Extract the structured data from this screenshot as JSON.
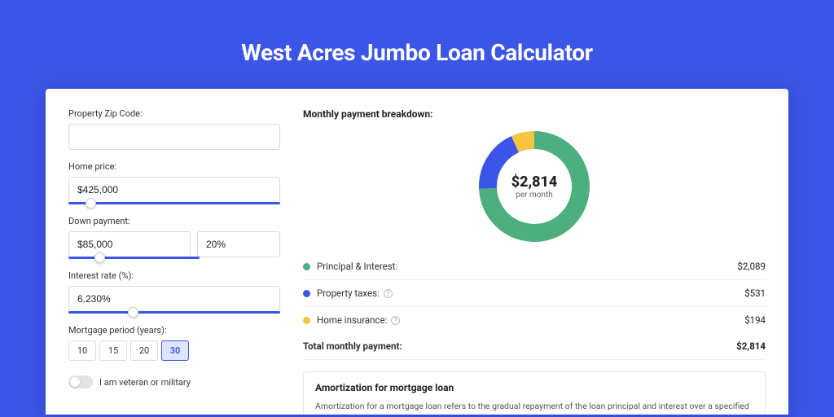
{
  "page": {
    "title": "West Acres Jumbo Loan Calculator",
    "background_color": "#3b55e6",
    "card_background": "#ffffff"
  },
  "form": {
    "zip": {
      "label": "Property Zip Code:",
      "value": ""
    },
    "home_price": {
      "label": "Home price:",
      "value": "$425,000",
      "slider_pos_pct": 8
    },
    "down_payment": {
      "label": "Down payment:",
      "amount": "$85,000",
      "percent": "20%",
      "slider_pos_pct": 20
    },
    "interest_rate": {
      "label": "Interest rate (%):",
      "value": "6.230%",
      "slider_pos_pct": 28
    },
    "mortgage_period": {
      "label": "Mortgage period (years):",
      "options": [
        "10",
        "15",
        "20",
        "30"
      ],
      "selected": "30"
    },
    "veteran_toggle": {
      "label": "I am veteran or military",
      "checked": false
    }
  },
  "breakdown": {
    "title": "Monthly payment breakdown:",
    "donut": {
      "center_amount": "$2,814",
      "center_sub": "per month",
      "slices": [
        {
          "key": "principal_interest",
          "value": 2089,
          "color": "#4caf7d"
        },
        {
          "key": "property_taxes",
          "value": 531,
          "color": "#3b55e6"
        },
        {
          "key": "home_insurance",
          "value": 194,
          "color": "#f4c542"
        }
      ],
      "ring_width": 22
    },
    "rows": [
      {
        "dot_color": "#4caf7d",
        "label": "Principal & Interest:",
        "value": "$2,089",
        "info": false
      },
      {
        "dot_color": "#3b55e6",
        "label": "Property taxes:",
        "value": "$531",
        "info": true
      },
      {
        "dot_color": "#f4c542",
        "label": "Home insurance:",
        "value": "$194",
        "info": true
      }
    ],
    "total": {
      "label": "Total monthly payment:",
      "value": "$2,814"
    }
  },
  "amortization": {
    "title": "Amortization for mortgage loan",
    "desc": "Amortization for a mortgage loan refers to the gradual repayment of the loan principal and interest over a specified"
  }
}
